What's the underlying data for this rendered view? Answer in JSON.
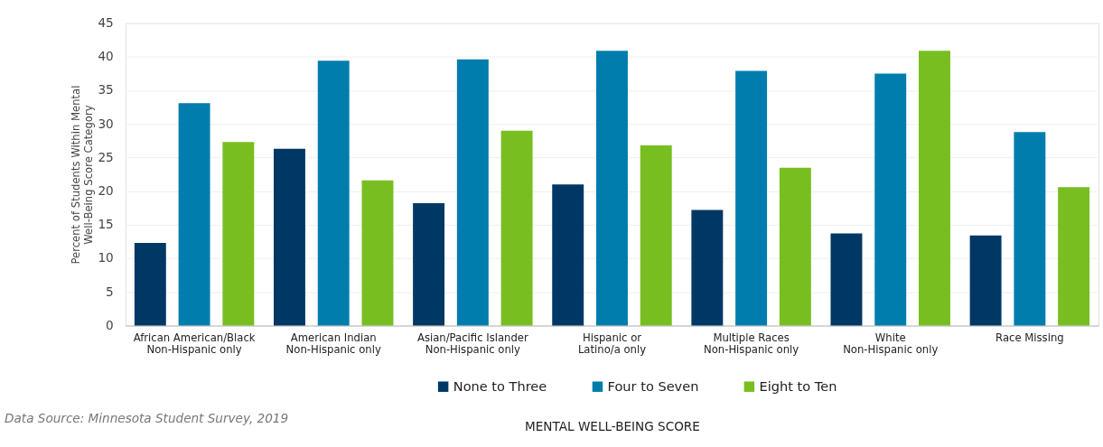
{
  "chart_data": {
    "type": "bar",
    "categories": [
      "African American/Black\nNon-Hispanic only",
      "American Indian\nNon-Hispanic only",
      "Asian/Pacific Islander\nNon-Hispanic only",
      "Hispanic or\nLatino/a only",
      "Multiple Races\nNon-Hispanic only",
      "White\nNon-Hispanic only",
      "Race Missing"
    ],
    "series": [
      {
        "name": "None to Three",
        "color": "#003865",
        "values": [
          12.3,
          26.3,
          18.2,
          21.0,
          17.2,
          13.7,
          13.4
        ]
      },
      {
        "name": "Four to Seven",
        "color": "#007dad",
        "values": [
          33.1,
          39.4,
          39.6,
          40.9,
          37.9,
          37.5,
          28.8
        ]
      },
      {
        "name": "Eight to Ten",
        "color": "#78be21",
        "values": [
          27.3,
          21.6,
          29.0,
          26.8,
          23.5,
          40.9,
          20.6
        ]
      }
    ],
    "xlabel": "MENTAL WELL-BEING SCORE",
    "ylabel": "Percent of Students Within Mental\nWell-Being Score Category",
    "ylim": [
      0,
      45
    ],
    "yticks": [
      0,
      5,
      10,
      15,
      20,
      25,
      30,
      35,
      40,
      45
    ],
    "grid": "y",
    "legend": "bottom",
    "annotations": [
      "Data Source: Minnesota Student Survey, 2019"
    ]
  }
}
